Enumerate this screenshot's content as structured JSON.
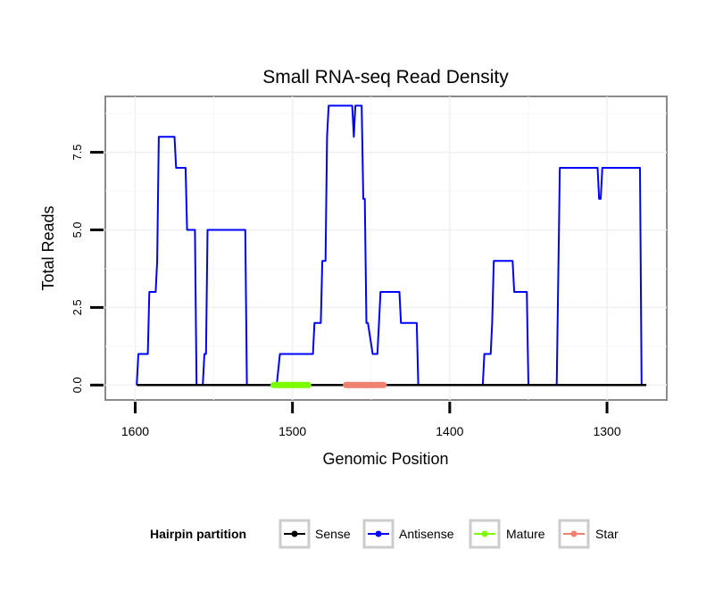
{
  "chart_data": {
    "type": "line",
    "title": "Small RNA-seq Read Density",
    "xlabel": "Genomic Position",
    "ylabel": "Total Reads",
    "xlim": [
      1619,
      1262
    ],
    "ylim": [
      -0.48,
      9.3
    ],
    "x_ticks": [
      1600,
      1500,
      1400,
      1300
    ],
    "x_tick_labels": [
      "1600",
      "1500",
      "1400",
      "1300"
    ],
    "y_ticks": [
      0,
      2.5,
      5,
      7.5
    ],
    "y_tick_labels": [
      "0.0",
      "2.5",
      "5.0",
      "7.5"
    ],
    "grid": true,
    "legend": {
      "title": "Hairpin partition",
      "placement": "bottom",
      "entries": [
        {
          "label": "Sense",
          "color": "#000000"
        },
        {
          "label": "Antisense",
          "color": "#0000ff"
        },
        {
          "label": "Mature",
          "color": "#7cfc00"
        },
        {
          "label": "Star",
          "color": "#f08070"
        }
      ]
    },
    "series": [
      {
        "name": "Antisense",
        "color": "#0000ff",
        "points": [
          [
            1599,
            0
          ],
          [
            1598,
            1
          ],
          [
            1592,
            1
          ],
          [
            1591,
            3
          ],
          [
            1587,
            3
          ],
          [
            1586,
            4
          ],
          [
            1585,
            8
          ],
          [
            1575,
            8
          ],
          [
            1574,
            7
          ],
          [
            1568,
            7
          ],
          [
            1567,
            5
          ],
          [
            1562,
            5
          ],
          [
            1561,
            0
          ],
          [
            1557,
            0
          ],
          [
            1556,
            1
          ],
          [
            1555,
            1
          ],
          [
            1554,
            5
          ],
          [
            1530,
            5
          ],
          [
            1529,
            0
          ],
          [
            1510,
            0
          ],
          [
            1508,
            1
          ],
          [
            1487,
            1
          ],
          [
            1486,
            2
          ],
          [
            1482,
            2
          ],
          [
            1481,
            4
          ],
          [
            1479,
            4
          ],
          [
            1478,
            8
          ],
          [
            1477,
            9
          ],
          [
            1462,
            9
          ],
          [
            1461,
            8
          ],
          [
            1460,
            9
          ],
          [
            1456,
            9
          ],
          [
            1455,
            6
          ],
          [
            1454,
            6
          ],
          [
            1453,
            2
          ],
          [
            1452,
            2
          ],
          [
            1449,
            1
          ],
          [
            1446,
            1
          ],
          [
            1445,
            2
          ],
          [
            1444,
            3
          ],
          [
            1432,
            3
          ],
          [
            1431,
            2
          ],
          [
            1421,
            2
          ],
          [
            1420,
            0
          ],
          [
            1379,
            0
          ],
          [
            1378,
            1
          ],
          [
            1374,
            1
          ],
          [
            1373,
            2
          ],
          [
            1372,
            4
          ],
          [
            1360,
            4
          ],
          [
            1359,
            3
          ],
          [
            1351,
            3
          ],
          [
            1350,
            0
          ],
          [
            1332,
            0
          ],
          [
            1330,
            7
          ],
          [
            1306,
            7
          ],
          [
            1305,
            6
          ],
          [
            1304,
            6
          ],
          [
            1303,
            7
          ],
          [
            1279,
            7
          ],
          [
            1278,
            0
          ]
        ]
      },
      {
        "name": "Sense",
        "color": "#000000",
        "points": [
          [
            1599,
            0
          ],
          [
            1275,
            0
          ]
        ]
      },
      {
        "name": "Mature",
        "color": "#7cfc00",
        "points": [
          [
            1512,
            0
          ],
          [
            1490,
            0
          ]
        ]
      },
      {
        "name": "Star",
        "color": "#f08070",
        "points": [
          [
            1466,
            0
          ],
          [
            1442,
            0
          ]
        ]
      }
    ]
  }
}
